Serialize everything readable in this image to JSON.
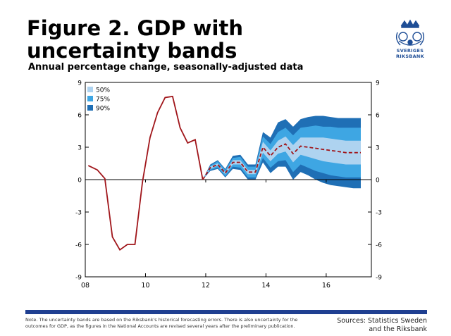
{
  "header": {
    "title": "Figure 2. GDP with uncertainty bands",
    "subtitle": "Annual percentage change, seasonally-adjusted data",
    "logo_text": "SVERIGES RIKSBANK"
  },
  "footer": {
    "note": "Note. The uncertainty bands are based on the Riksbank's historical forecasting errors. There is also uncertainty for the outcomes for GDP, as the figures in the National Accounts are revised several years after the preliminary publication.",
    "sources": "Sources: Statistics Sweden and the Riksbank"
  },
  "colors": {
    "outcome": "#a0151a",
    "forecast": "#a0151a",
    "band50": "#aed3f0",
    "band75": "#3ea6e3",
    "band90": "#1f6fb5",
    "brand": "#1f3f91"
  },
  "chart_data": {
    "type": "area",
    "title": "Figure 2. GDP with uncertainty bands",
    "subtitle": "Annual percentage change, seasonally-adjusted data",
    "xlabel": "",
    "ylabel": "",
    "xlim": [
      2008,
      2017.5
    ],
    "ylim": [
      -9,
      9
    ],
    "xticks": [
      2008,
      2010,
      2012,
      2014,
      2016
    ],
    "xtick_labels": [
      "08",
      "10",
      "12",
      "14",
      "16"
    ],
    "yticks": [
      -9,
      -6,
      -3,
      0,
      3,
      6,
      9
    ],
    "grid": false,
    "legend": {
      "position": "top-left",
      "items": [
        "50%",
        "75%",
        "90%"
      ]
    },
    "series": [
      {
        "name": "",
        "style": "solid",
        "x": [
          2008.1,
          2008.4,
          2008.65,
          2008.9,
          2009.15,
          2009.4,
          2009.65,
          2009.9,
          2010.15,
          2010.4,
          2010.65,
          2010.9,
          2011.15,
          2011.4,
          2011.65,
          2011.9
        ],
        "values": [
          1.3,
          0.9,
          0.1,
          -5.3,
          -6.5,
          -6.0,
          -6.0,
          -0.2,
          3.9,
          6.2,
          7.6,
          7.7,
          4.8,
          3.4,
          3.7,
          0.0
        ]
      },
      {
        "name": "",
        "style": "dashed",
        "x": [
          2011.9,
          2012.15,
          2012.4,
          2012.65,
          2012.9,
          2013.15,
          2013.4,
          2013.65,
          2013.9,
          2014.15,
          2014.4,
          2014.65,
          2014.9,
          2015.15,
          2015.4,
          2015.65,
          2015.9,
          2016.15,
          2016.4,
          2016.65,
          2016.9,
          2017.15
        ],
        "values": [
          0.0,
          1.1,
          1.4,
          0.6,
          1.6,
          1.6,
          0.7,
          0.7,
          3.0,
          2.2,
          3.0,
          3.3,
          2.4,
          3.1,
          3.0,
          2.9,
          2.8,
          2.7,
          2.6,
          2.5,
          2.5,
          2.5
        ]
      }
    ],
    "bands": [
      {
        "name": "90%",
        "x": [
          2011.9,
          2012.15,
          2012.4,
          2012.65,
          2012.9,
          2013.15,
          2013.4,
          2013.65,
          2013.9,
          2014.15,
          2014.4,
          2014.65,
          2014.9,
          2015.15,
          2015.4,
          2015.65,
          2015.9,
          2016.15,
          2016.4,
          2016.65,
          2016.9,
          2017.15
        ],
        "lower": [
          0.0,
          0.8,
          1.0,
          0.2,
          1.0,
          0.9,
          0.0,
          0.0,
          1.6,
          0.6,
          1.2,
          1.2,
          0.0,
          0.7,
          0.4,
          0.0,
          -0.3,
          -0.5,
          -0.6,
          -0.7,
          -0.8,
          -0.8
        ],
        "upper": [
          0.0,
          1.4,
          1.8,
          1.0,
          2.2,
          2.3,
          1.4,
          1.4,
          4.4,
          3.9,
          5.3,
          5.6,
          4.9,
          5.6,
          5.8,
          5.9,
          5.9,
          5.8,
          5.7,
          5.7,
          5.7,
          5.7
        ]
      },
      {
        "name": "75%",
        "x": [
          2011.9,
          2012.15,
          2012.4,
          2012.65,
          2012.9,
          2013.15,
          2013.4,
          2013.65,
          2013.9,
          2014.15,
          2014.4,
          2014.65,
          2014.9,
          2015.15,
          2015.4,
          2015.65,
          2015.9,
          2016.15,
          2016.4,
          2016.65,
          2016.9,
          2017.15
        ],
        "lower": [
          0.0,
          0.9,
          1.1,
          0.3,
          1.2,
          1.1,
          0.2,
          0.2,
          2.0,
          1.1,
          1.7,
          1.8,
          0.7,
          1.4,
          1.1,
          0.8,
          0.6,
          0.4,
          0.3,
          0.2,
          0.2,
          0.2
        ],
        "upper": [
          0.0,
          1.3,
          1.7,
          0.9,
          2.0,
          2.1,
          1.2,
          1.2,
          4.0,
          3.3,
          4.4,
          4.8,
          4.1,
          4.8,
          4.9,
          5.0,
          4.9,
          4.9,
          4.8,
          4.8,
          4.8,
          4.8
        ]
      },
      {
        "name": "50%",
        "x": [
          2011.9,
          2012.15,
          2012.4,
          2012.65,
          2012.9,
          2013.15,
          2013.4,
          2013.65,
          2013.9,
          2014.15,
          2014.4,
          2014.65,
          2014.9,
          2015.15,
          2015.4,
          2015.65,
          2015.9,
          2016.15,
          2016.4,
          2016.65,
          2016.9,
          2017.15
        ],
        "lower": [
          0.0,
          1.0,
          1.3,
          0.5,
          1.4,
          1.4,
          0.5,
          0.5,
          2.5,
          1.7,
          2.4,
          2.6,
          1.6,
          2.3,
          2.1,
          1.9,
          1.7,
          1.6,
          1.5,
          1.4,
          1.4,
          1.4
        ],
        "upper": [
          0.0,
          1.2,
          1.5,
          0.7,
          1.8,
          1.8,
          0.9,
          0.9,
          3.5,
          2.7,
          3.6,
          4.0,
          3.2,
          3.9,
          3.9,
          3.9,
          3.9,
          3.8,
          3.7,
          3.6,
          3.6,
          3.6
        ]
      }
    ]
  }
}
